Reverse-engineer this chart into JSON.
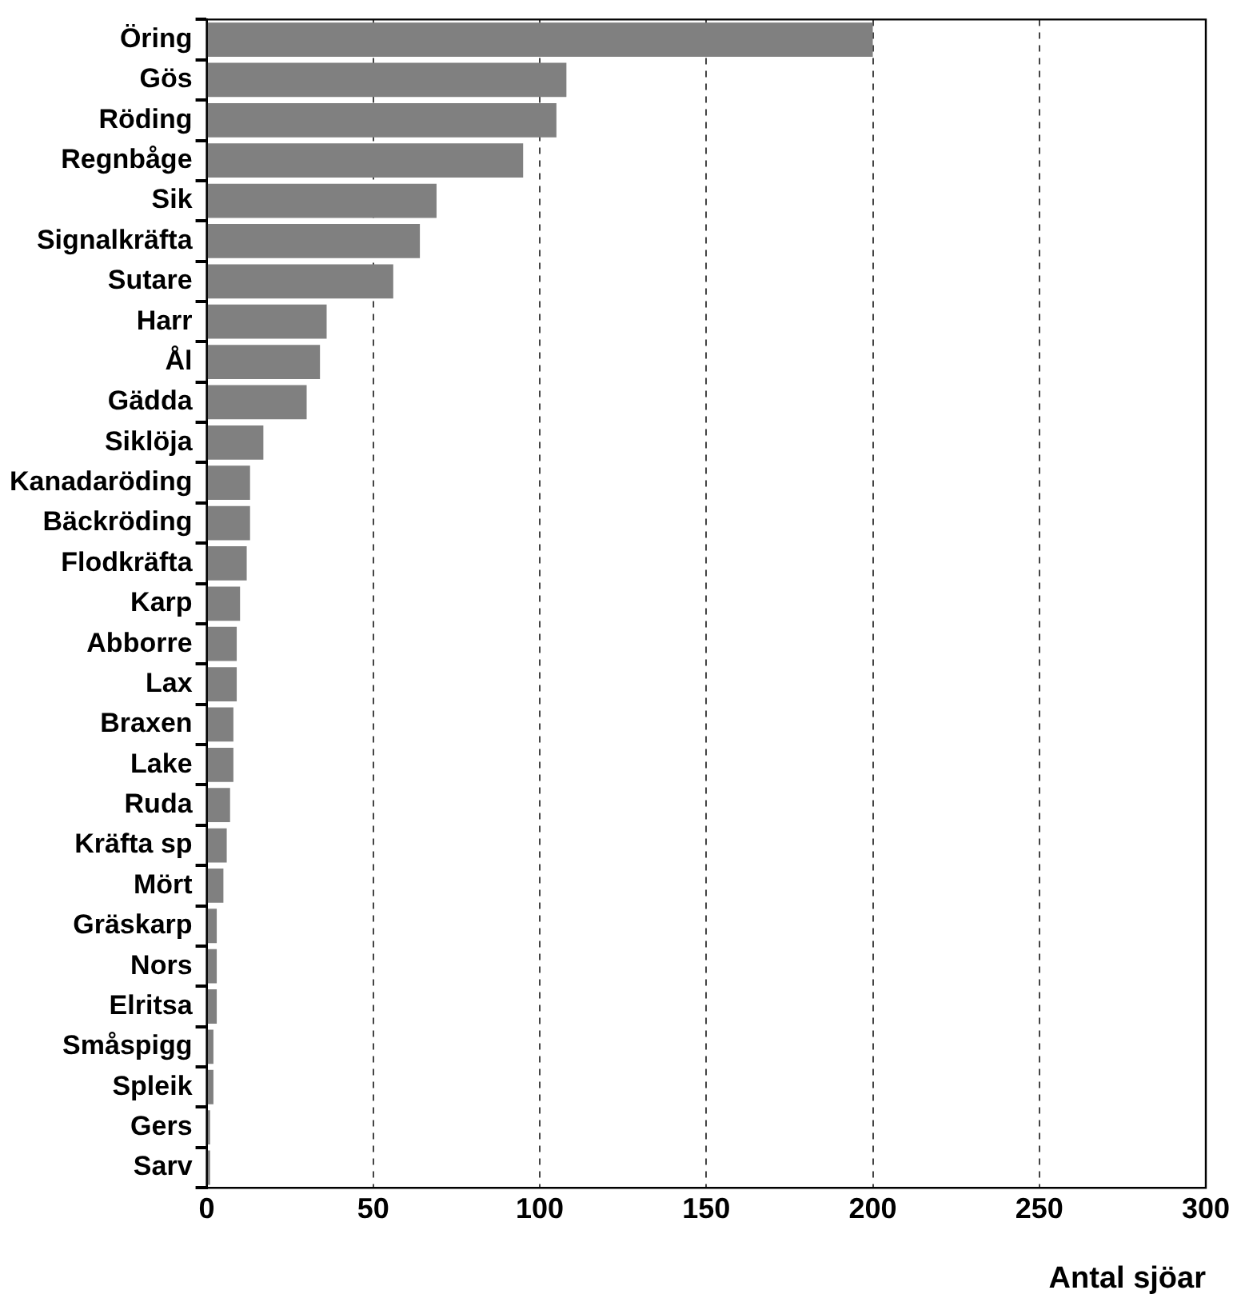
{
  "chart_data": {
    "type": "bar",
    "orientation": "horizontal",
    "xlabel": "Antal sjöar",
    "categories": [
      "Öring",
      "Gös",
      "Röding",
      "Regnbåge",
      "Sik",
      "Signalkräfta",
      "Sutare",
      "Harr",
      "Ål",
      "Gädda",
      "Siklöja",
      "Kanadaröding",
      "Bäckröding",
      "Flodkräfta",
      "Karp",
      "Abborre",
      "Lax",
      "Braxen",
      "Lake",
      "Ruda",
      "Kräfta sp",
      "Mört",
      "Gräskarp",
      "Nors",
      "Elritsa",
      "Småspigg",
      "Spleik",
      "Gers",
      "Sarv"
    ],
    "values": [
      200,
      108,
      105,
      95,
      69,
      64,
      56,
      36,
      34,
      30,
      17,
      13,
      13,
      12,
      10,
      9,
      9,
      8,
      8,
      7,
      6,
      5,
      3,
      3,
      3,
      2,
      2,
      1,
      1
    ],
    "color": "#808080",
    "xlim": [
      0,
      300
    ],
    "xticks": [
      0,
      50,
      100,
      150,
      200,
      250,
      300
    ],
    "grid": "x",
    "legend": false
  }
}
